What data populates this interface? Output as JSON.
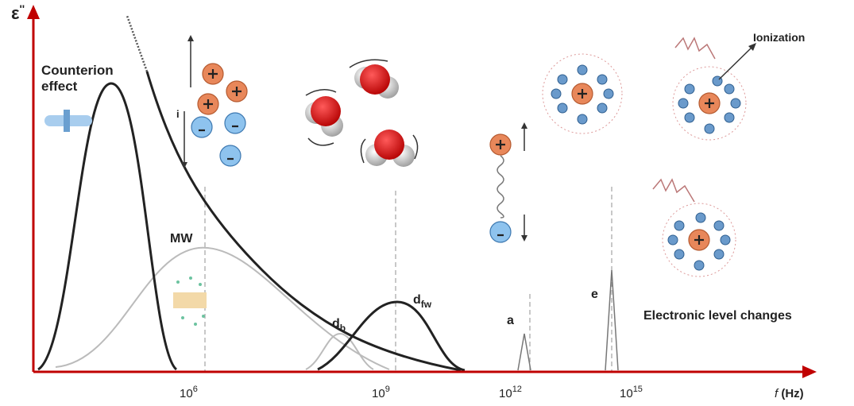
{
  "axis": {
    "y_label": {
      "main": "ε",
      "prime": "''"
    },
    "x_label": {
      "var": "f",
      "unit": "(Hz)"
    },
    "ticks": [
      {
        "base": "10",
        "exp": "6"
      },
      {
        "base": "10",
        "exp": "9"
      },
      {
        "base": "10",
        "exp": "12"
      },
      {
        "base": "10",
        "exp": "15"
      }
    ]
  },
  "labels": {
    "counterion": [
      "Counterion",
      "effect"
    ],
    "mw": "MW",
    "db": {
      "main": "d",
      "sub": "b"
    },
    "dfw": {
      "main": "d",
      "sub": "fw"
    },
    "a": "a",
    "e": "e",
    "i": "i",
    "ionization": "Ionization",
    "electronic": "Electronic level changes"
  }
}
